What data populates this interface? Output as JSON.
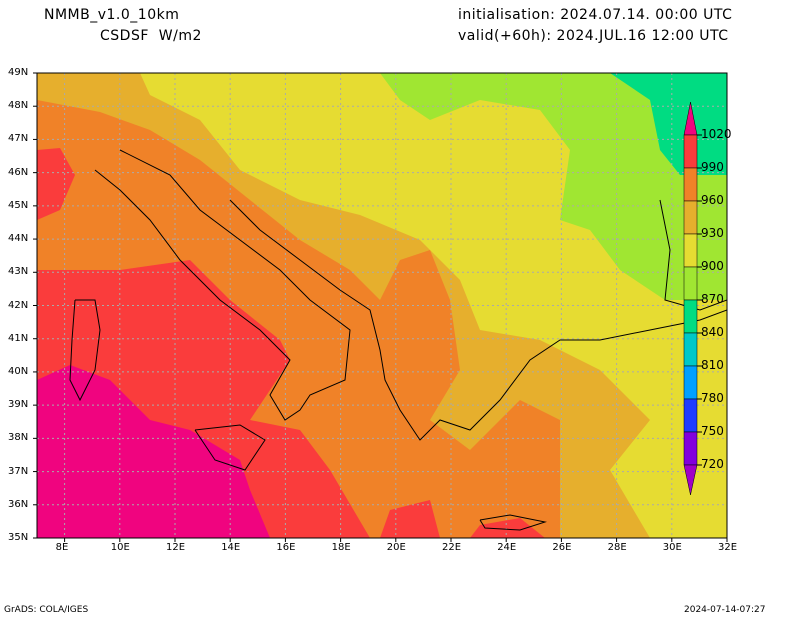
{
  "header": {
    "model": "NMMB_v1.0_10km",
    "field": "CSDSF  W/m2",
    "init": "initialisation: 2024.07.14. 00:00 UTC",
    "valid": "valid(+60h): 2024.JUL.16 12:00 UTC"
  },
  "axes": {
    "lon_labels": [
      "8E",
      "10E",
      "12E",
      "14E",
      "16E",
      "18E",
      "20E",
      "22E",
      "24E",
      "26E",
      "28E",
      "30E",
      "32E"
    ],
    "lat_labels": [
      "49N",
      "48N",
      "47N",
      "46N",
      "45N",
      "44N",
      "43N",
      "42N",
      "41N",
      "40N",
      "39N",
      "38N",
      "37N",
      "36N",
      "35N"
    ]
  },
  "colorbar": {
    "levels": [
      "1020",
      "990",
      "960",
      "930",
      "900",
      "870",
      "840",
      "810",
      "780",
      "750",
      "720"
    ],
    "colors": [
      "#f0047f",
      "#fa3c3c",
      "#f08228",
      "#e6af2d",
      "#e6dc32",
      "#a0e632",
      "#00dc82",
      "#00c8c8",
      "#00a0ff",
      "#1e3cff",
      "#8200dc",
      "#a000c8"
    ]
  },
  "footer": {
    "left": "GrADS: COLA/IGES",
    "right": "2024-07-14-07:27"
  }
}
